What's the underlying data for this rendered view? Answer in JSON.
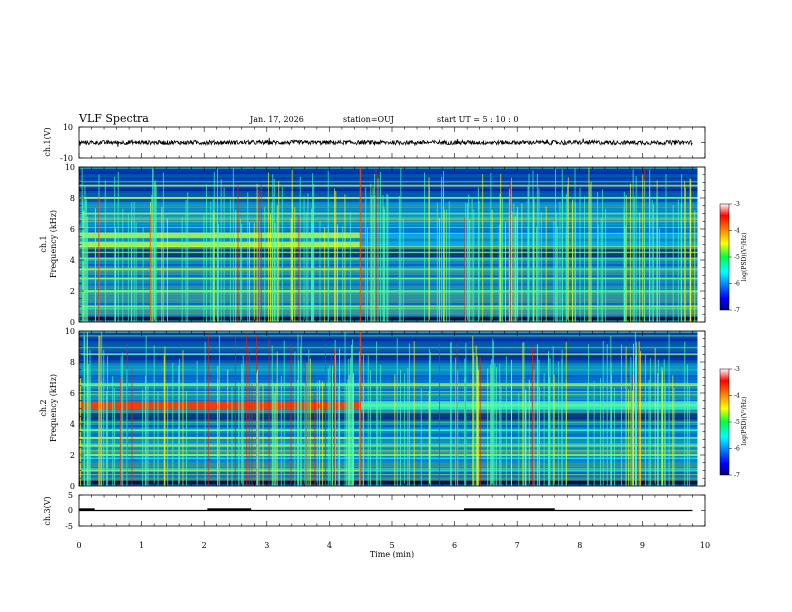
{
  "header": {
    "title": "VLF Spectra",
    "date": "Jan. 17, 2026",
    "station": "station=OUJ",
    "start": "start UT =  5 : 10 : 0"
  },
  "chart_data": [
    {
      "type": "line",
      "panel": "ch1-waveform",
      "ylabel": "ch.1(V)",
      "ylim": [
        -10,
        10
      ],
      "yticks": [
        "10",
        "-10"
      ],
      "x_range_min": [
        0,
        9.8
      ],
      "description_values": "noise waveform around 0 V"
    },
    {
      "type": "heatmap",
      "panel": "ch1-spectrogram",
      "ylabel_top": "ch.1",
      "ylabel": "Frequency (kHz)",
      "ylim": [
        0,
        10
      ],
      "yticks": [
        "0",
        "2",
        "4",
        "6",
        "8",
        "10"
      ],
      "colorbar": {
        "label": "log(PSD)(V²/Hz)",
        "min": -7,
        "max": -3,
        "ticks": [
          "-3",
          "-4",
          "-5",
          "-6",
          "-7"
        ]
      },
      "bands_khz": [
        1.0,
        2.0,
        2.8,
        3.4,
        4.1,
        5.0,
        5.6,
        7.0,
        8.0,
        8.8
      ],
      "transition_min": 4.5
    },
    {
      "type": "heatmap",
      "panel": "ch2-spectrogram",
      "ylabel_top": "ch.2",
      "ylabel": "Frequency (kHz)",
      "ylim": [
        0,
        10
      ],
      "yticks": [
        "0",
        "2",
        "4",
        "6",
        "8",
        "10"
      ],
      "colorbar": {
        "label": "log(PSD)(V²/Hz)",
        "min": -7,
        "max": -3,
        "ticks": [
          "-3",
          "-4",
          "-5",
          "-6",
          "-7"
        ]
      },
      "bands_khz": [
        1.0,
        2.0,
        2.6,
        3.1,
        3.6,
        5.1,
        5.3,
        6.5,
        8.5
      ],
      "transition_min": 4.5
    },
    {
      "type": "line",
      "panel": "ch3-digital",
      "ylabel": "ch.3(V)",
      "ylim": [
        -5,
        5
      ],
      "yticks": [
        "5",
        "0",
        "-5"
      ],
      "baseline_v": 0,
      "high_v": 0.4,
      "high_segments_min": [
        [
          0.0,
          0.25
        ],
        [
          2.05,
          2.75
        ],
        [
          6.15,
          7.6
        ]
      ],
      "end_min": 9.8
    }
  ],
  "xaxis": {
    "label": "Time (min)",
    "xlim": [
      0,
      10
    ],
    "ticks": [
      "0",
      "1",
      "2",
      "3",
      "4",
      "5",
      "6",
      "7",
      "8",
      "9",
      "10"
    ]
  }
}
